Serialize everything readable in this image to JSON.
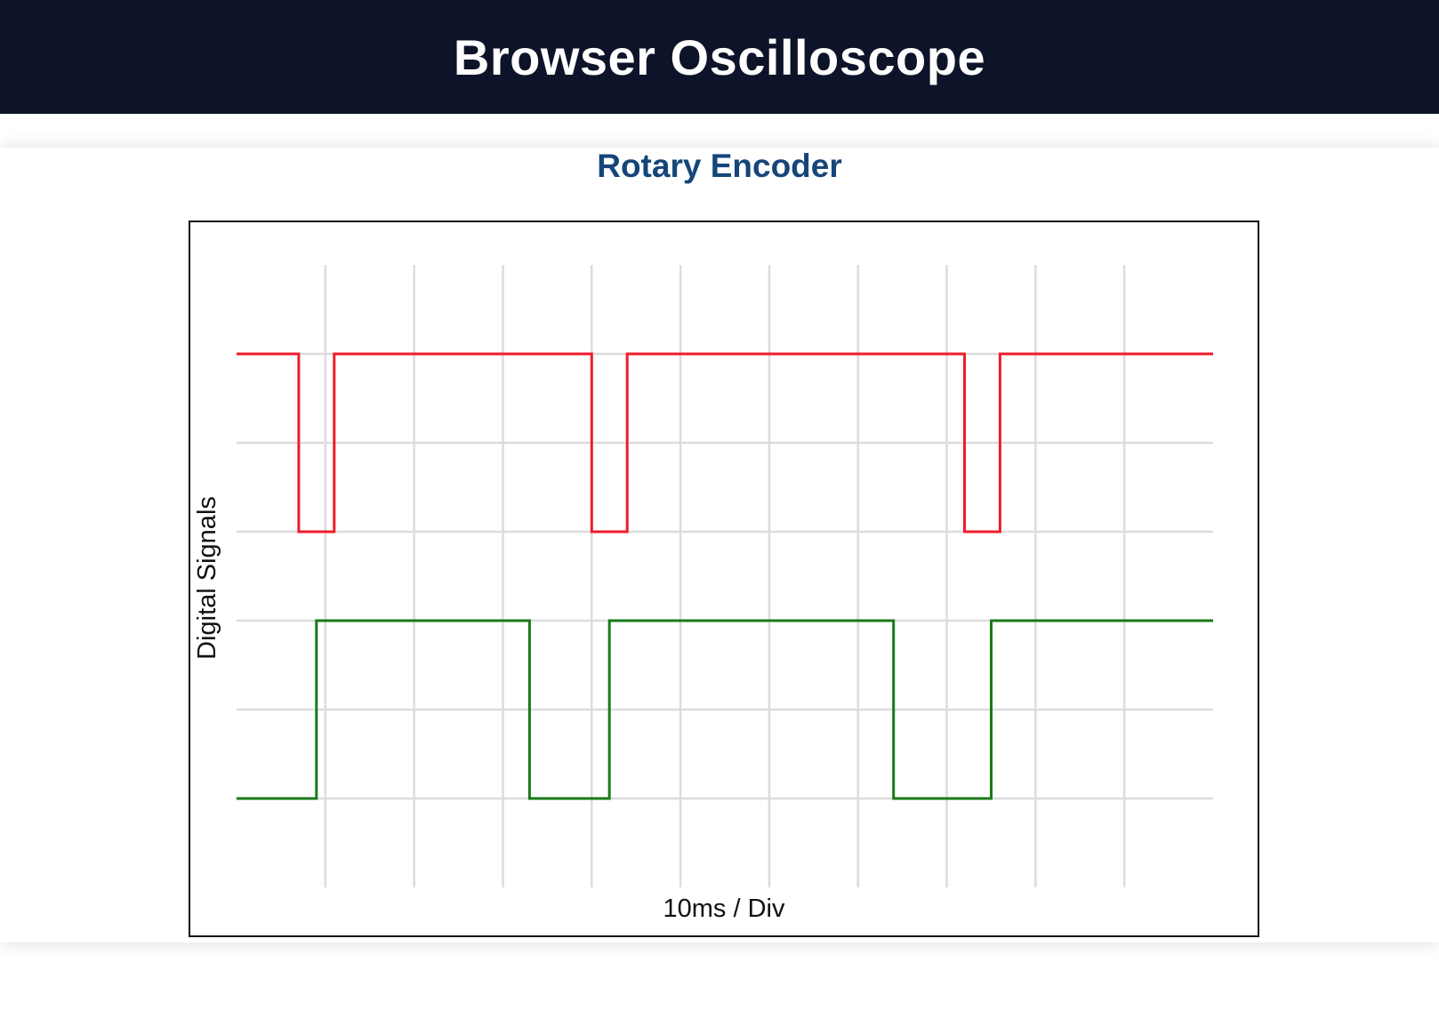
{
  "header": {
    "title": "Browser Oscilloscope",
    "background": "#0d1328"
  },
  "panel": {
    "title": "Rotary Encoder",
    "title_color": "#15467a"
  },
  "chart_data": {
    "type": "line",
    "step": true,
    "xlabel": "10ms / Div",
    "ylabel": "Digital Signals",
    "grid": true,
    "x_divisions": 11,
    "y_divisions": 7,
    "xlim": [
      0,
      110
    ],
    "ylim": [
      0,
      7
    ],
    "series": [
      {
        "color": "#ee1c2b",
        "low": 4,
        "high": 6,
        "x": [
          0,
          7,
          7,
          11,
          11,
          40,
          40,
          44,
          44,
          82,
          82,
          86,
          86,
          110
        ],
        "values": [
          6,
          6,
          4,
          4,
          6,
          6,
          4,
          4,
          6,
          6,
          4,
          4,
          6,
          6
        ]
      },
      {
        "color": "#1a7a1a",
        "low": 1,
        "high": 3,
        "x": [
          0,
          9,
          9,
          33,
          33,
          42,
          42,
          74,
          74,
          85,
          85,
          110
        ],
        "values": [
          1,
          1,
          3,
          3,
          1,
          1,
          3,
          3,
          1,
          1,
          3,
          3
        ]
      }
    ]
  }
}
